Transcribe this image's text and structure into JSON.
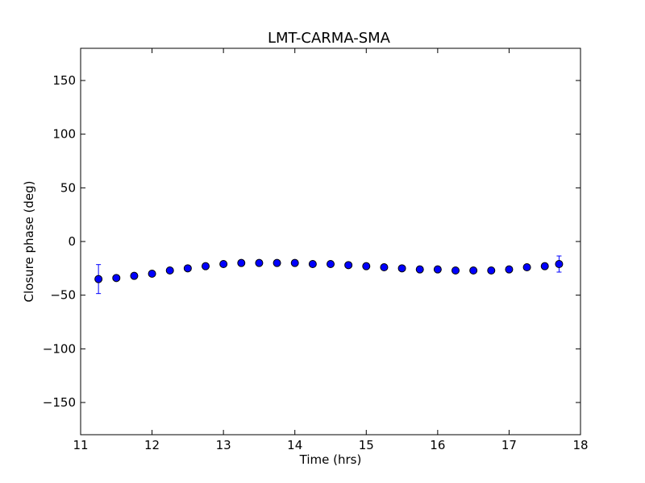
{
  "chart_data": {
    "type": "scatter",
    "title": "LMT-CARMA-SMA",
    "xlabel": "Time (hrs)",
    "ylabel": "Closure phase (deg)",
    "xlim": [
      11,
      18
    ],
    "ylim": [
      -180,
      180
    ],
    "xticks": [
      11,
      12,
      13,
      14,
      15,
      16,
      17,
      18
    ],
    "yticks": [
      -150,
      -100,
      -50,
      0,
      50,
      100,
      150
    ],
    "xtick_labels": [
      "11",
      "12",
      "13",
      "14",
      "15",
      "16",
      "17",
      "18"
    ],
    "ytick_labels": [
      "−150",
      "−100",
      "−50",
      "0",
      "50",
      "100",
      "150"
    ],
    "grid": false,
    "marker_color": "#0000ff",
    "errorbar_color": "#0000ff",
    "series": [
      {
        "x": [
          11.25,
          11.5,
          11.75,
          12.0,
          12.25,
          12.5,
          12.75,
          13.0,
          13.25,
          13.5,
          13.75,
          14.0,
          14.25,
          14.5,
          14.75,
          15.0,
          15.25,
          15.5,
          15.75,
          16.0,
          16.25,
          16.5,
          16.75,
          17.0,
          17.25,
          17.5,
          17.7
        ],
        "y": [
          -35,
          -34,
          -32,
          -30,
          -27,
          -25,
          -23,
          -21,
          -20,
          -20,
          -20,
          -20,
          -21,
          -21,
          -22,
          -23,
          -24,
          -25,
          -26,
          -26,
          -27,
          -27,
          -27,
          -26,
          -24,
          -23,
          -21
        ],
        "yerr": [
          13.5,
          1,
          1,
          1,
          1,
          1,
          1,
          1,
          1,
          1,
          1,
          1,
          1,
          1,
          1,
          1,
          1,
          1,
          1,
          1,
          1,
          1,
          1,
          1,
          1,
          1,
          7.5
        ]
      }
    ]
  }
}
